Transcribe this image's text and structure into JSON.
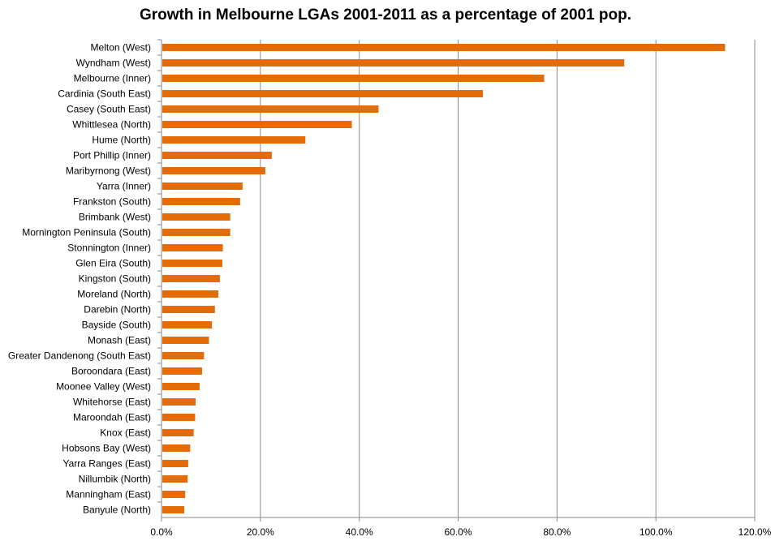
{
  "chart_data": {
    "type": "bar",
    "orientation": "horizontal",
    "title": "Growth in Melbourne LGAs 2001-2011 as a percentage of 2001 pop.",
    "xlabel": "",
    "ylabel": "",
    "xlim": [
      0,
      120
    ],
    "x_ticks": [
      0,
      20,
      40,
      60,
      80,
      100,
      120
    ],
    "x_tick_labels": [
      "0.0%",
      "20.0%",
      "40.0%",
      "60.0%",
      "80.0%",
      "100.0%",
      "120.0%"
    ],
    "grid": "vertical",
    "legend": "none",
    "bar_color": "#E36C09",
    "categories": [
      "Melton (West)",
      "Wyndham (West)",
      "Melbourne (Inner)",
      "Cardinia (South East)",
      "Casey (South East)",
      "Whittlesea (North)",
      "Hume (North)",
      "Port Phillip (Inner)",
      "Maribyrnong (West)",
      "Yarra (Inner)",
      "Frankston (South)",
      "Brimbank (West)",
      "Mornington Peninsula (South)",
      "Stonnington (Inner)",
      "Glen Eira (South)",
      "Kingston (South)",
      "Moreland (North)",
      "Darebin (North)",
      "Bayside (South)",
      "Monash (East)",
      "Greater Dandenong (South East)",
      "Boroondara (East)",
      "Moonee Valley (West)",
      "Whitehorse (East)",
      "Maroondah (East)",
      "Knox (East)",
      "Hobsons Bay (West)",
      "Yarra Ranges (East)",
      "Nillumbik (North)",
      "Manningham (East)",
      "Banyule (North)"
    ],
    "values": [
      114.0,
      93.6,
      77.4,
      65.0,
      43.9,
      38.5,
      29.1,
      22.3,
      21.0,
      16.4,
      15.9,
      13.9,
      13.9,
      12.4,
      12.3,
      11.8,
      11.5,
      10.8,
      10.2,
      9.6,
      8.6,
      8.2,
      7.7,
      6.9,
      6.8,
      6.5,
      5.8,
      5.4,
      5.3,
      4.8,
      4.6
    ]
  }
}
